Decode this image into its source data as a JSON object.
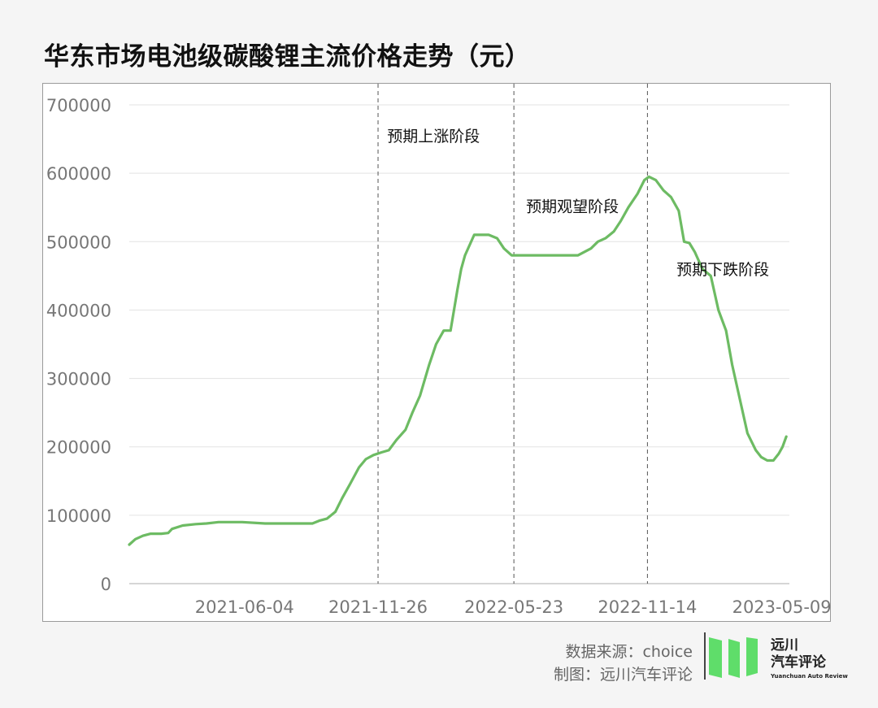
{
  "title": "华东市场电池级碳酸锂主流价格走势（元）",
  "footer": {
    "source": "数据来源：choice",
    "maker": "制图：远川汽车评论"
  },
  "logo": {
    "name_line1": "远川",
    "name_line2": "汽车评论",
    "name_en": "Yuanchuan Auto Review",
    "icon": "green-bars-logo-icon"
  },
  "chart_data": {
    "type": "line",
    "title": "华东市场电池级碳酸锂主流价格走势（元）",
    "xlabel": "",
    "ylabel": "",
    "ylim": [
      0,
      700000
    ],
    "yticks": [
      0,
      100000,
      200000,
      300000,
      400000,
      500000,
      600000,
      700000
    ],
    "ytick_labels": [
      "0",
      "100000",
      "200000",
      "300000",
      "400000",
      "500000",
      "600000",
      "700000"
    ],
    "xlim": [
      "2021-01-04",
      "2023-05-19"
    ],
    "xtick_labels": [
      "2021-06-04",
      "2021-11-26",
      "2022-05-23",
      "2022-11-14",
      "2023-05-09"
    ],
    "grid": "horizontal",
    "legend": "none",
    "line_color": "#6dbb63",
    "vlines": [
      "2021-11-26",
      "2022-05-23",
      "2022-11-14"
    ],
    "annotations": [
      {
        "text": "预期上涨阶段",
        "x": "2021-12-08",
        "y": 655000
      },
      {
        "text": "预期观望阶段",
        "x": "2022-06-08",
        "y": 552000
      },
      {
        "text": "预期下跌阶段",
        "x": "2022-12-22",
        "y": 460000
      }
    ],
    "series": [
      {
        "x": [
          "2021-01-04",
          "2021-01-12",
          "2021-01-22",
          "2021-02-01",
          "2021-02-15",
          "2021-02-24",
          "2021-03-01",
          "2021-03-15",
          "2021-04-01",
          "2021-04-15",
          "2021-05-01",
          "2021-06-01",
          "2021-07-01",
          "2021-08-01",
          "2021-08-20",
          "2021-09-01",
          "2021-09-10",
          "2021-09-20",
          "2021-10-01",
          "2021-10-10",
          "2021-10-20",
          "2021-11-01",
          "2021-11-10",
          "2021-11-20",
          "2021-12-01",
          "2021-12-10",
          "2021-12-20",
          "2022-01-01",
          "2022-01-10",
          "2022-01-20",
          "2022-02-01",
          "2022-02-10",
          "2022-02-20",
          "2022-03-01",
          "2022-03-10",
          "2022-03-15",
          "2022-03-20",
          "2022-04-01",
          "2022-04-20",
          "2022-05-01",
          "2022-05-10",
          "2022-05-20",
          "2022-05-28",
          "2022-06-15",
          "2022-07-15",
          "2022-08-15",
          "2022-09-01",
          "2022-09-10",
          "2022-09-20",
          "2022-10-01",
          "2022-10-10",
          "2022-10-20",
          "2022-11-01",
          "2022-11-10",
          "2022-11-16",
          "2022-11-25",
          "2022-12-05",
          "2022-12-15",
          "2022-12-25",
          "2023-01-01",
          "2023-01-08",
          "2023-01-15",
          "2023-01-25",
          "2023-02-05",
          "2023-02-15",
          "2023-02-25",
          "2023-03-05",
          "2023-03-15",
          "2023-03-25",
          "2023-04-05",
          "2023-04-12",
          "2023-04-20",
          "2023-04-28",
          "2023-05-05",
          "2023-05-10",
          "2023-05-15"
        ],
        "values": [
          57000,
          65000,
          70000,
          73000,
          73000,
          74000,
          80000,
          85000,
          87000,
          88000,
          90000,
          90000,
          88000,
          88000,
          88000,
          88000,
          92000,
          95000,
          105000,
          125000,
          145000,
          170000,
          182000,
          188000,
          192000,
          195000,
          210000,
          225000,
          250000,
          275000,
          320000,
          350000,
          370000,
          370000,
          430000,
          460000,
          480000,
          510000,
          510000,
          505000,
          490000,
          480000,
          480000,
          480000,
          480000,
          480000,
          490000,
          500000,
          505000,
          515000,
          530000,
          550000,
          570000,
          590000,
          595000,
          590000,
          575000,
          565000,
          545000,
          500000,
          498000,
          485000,
          460000,
          450000,
          400000,
          370000,
          320000,
          270000,
          220000,
          195000,
          185000,
          180000,
          180000,
          190000,
          200000,
          215000
        ]
      }
    ]
  }
}
